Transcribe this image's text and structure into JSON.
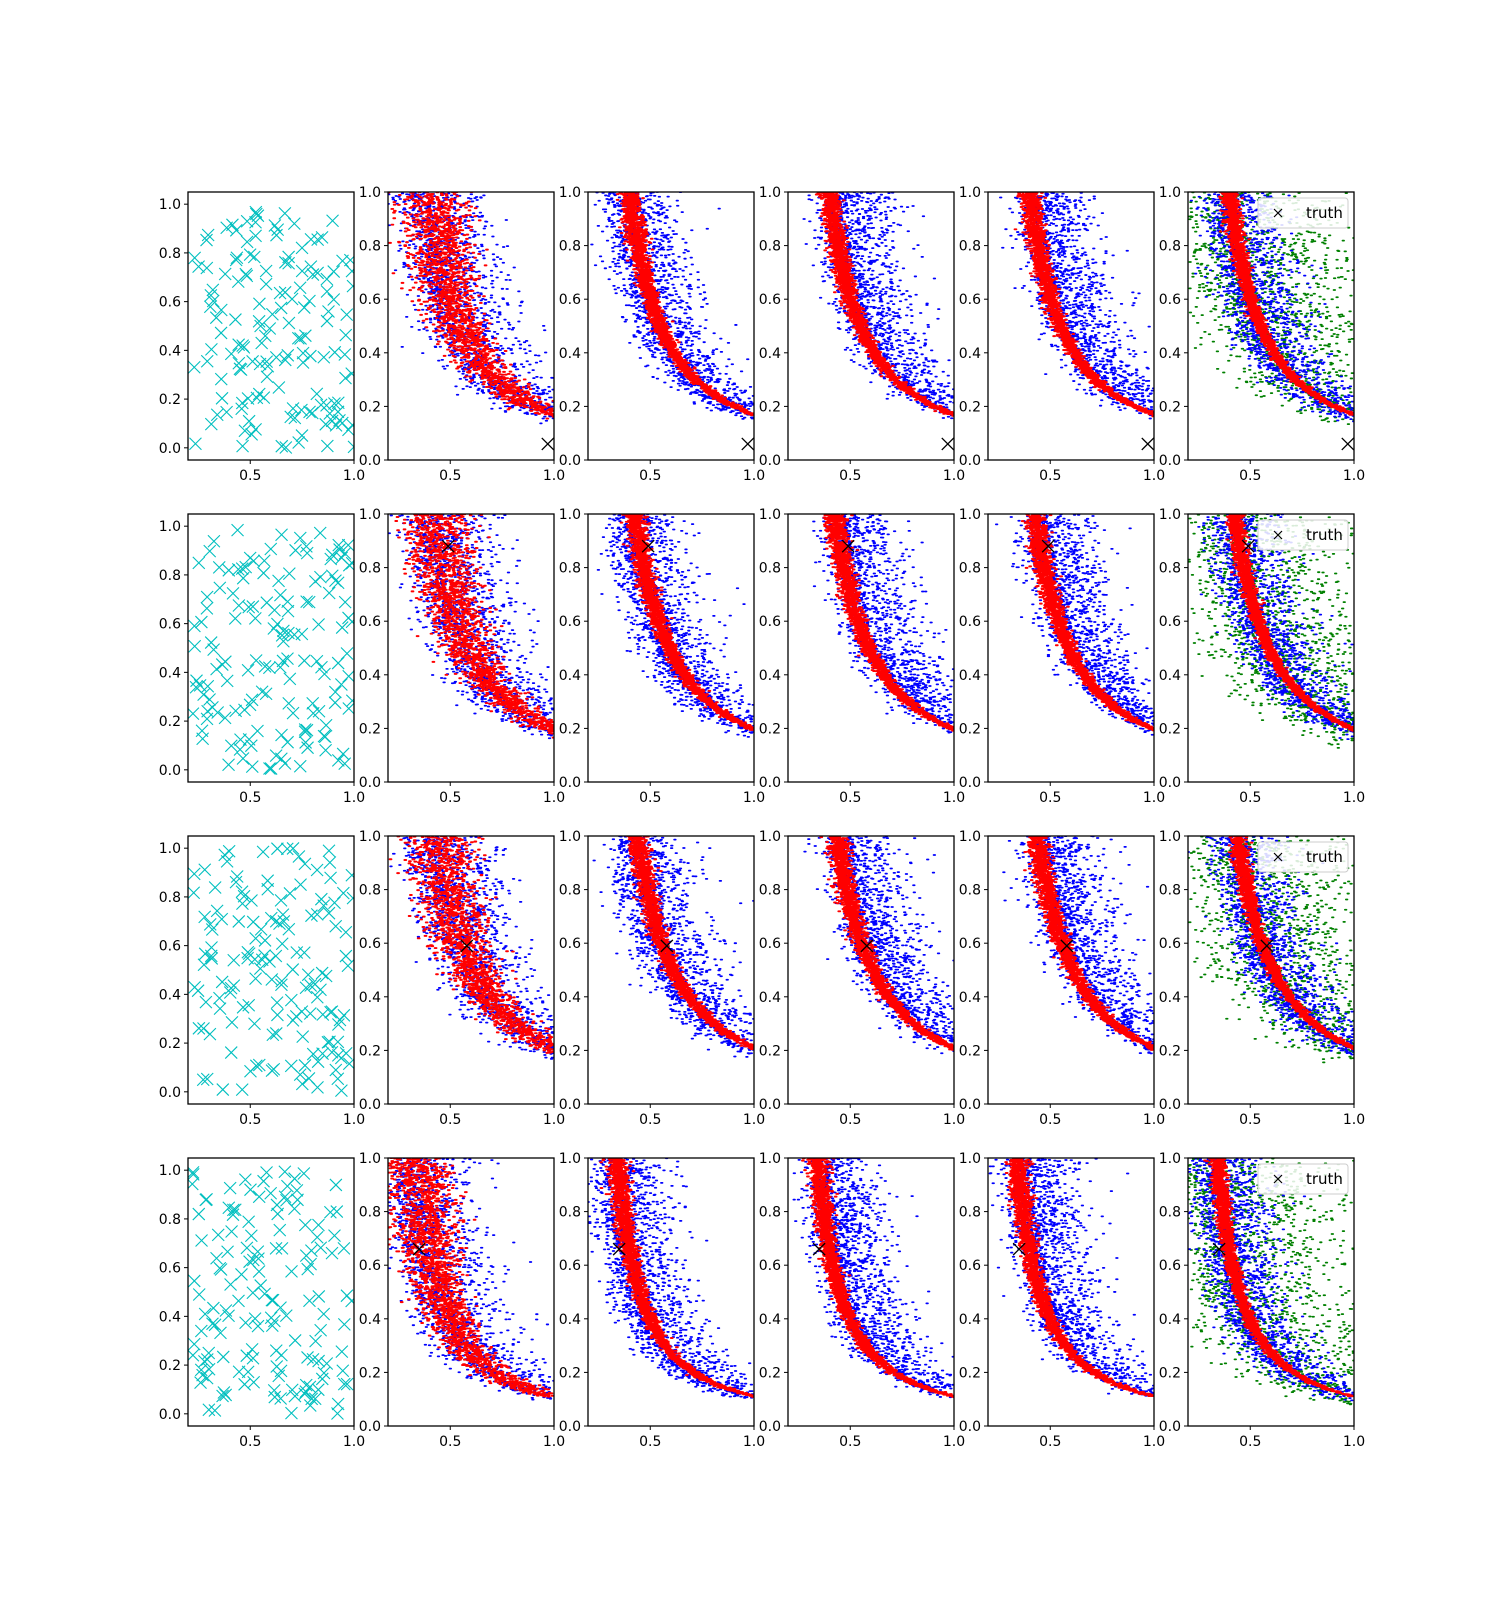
{
  "figure": {
    "rows": 4,
    "cols": 6
  },
  "chart_data": {
    "type": "scatter",
    "grid": false,
    "legend": {
      "label": "truth",
      "marker": "x",
      "color": "#000000",
      "placement": "upper-right",
      "panel": "last-column"
    },
    "colors": {
      "samples": "#00bfbf",
      "blue": "#0000ff",
      "red": "#ff0000",
      "green": "#008000",
      "truth": "#000000"
    },
    "first_column": {
      "xlim": [
        0.2,
        1.0
      ],
      "ylim": [
        -0.05,
        1.05
      ],
      "xticks": [
        "0.5",
        "1.0"
      ],
      "yticks": [
        "0.0",
        "0.2",
        "0.4",
        "0.6",
        "0.8",
        "1.0"
      ]
    },
    "other_columns": {
      "xlim": [
        0.2,
        1.0
      ],
      "ylim": [
        0.0,
        1.0
      ],
      "xticks": [
        "0.5",
        "1.0"
      ],
      "yticks": [
        "0.0",
        "0.2",
        "0.4",
        "0.6",
        "0.8",
        "1.0"
      ]
    },
    "rows": [
      {
        "truth": [
          0.97,
          0.06
        ],
        "curve_k": 0.13,
        "legend_shown": true
      },
      {
        "truth": [
          0.49,
          0.88
        ],
        "curve_k": 0.15,
        "legend_shown": true
      },
      {
        "truth": [
          0.58,
          0.59
        ],
        "curve_k": 0.16,
        "legend_shown": true
      },
      {
        "truth": [
          0.35,
          0.66
        ],
        "curve_k": 0.085,
        "legend_shown": true
      }
    ],
    "columns": [
      {
        "series": [
          "samples"
        ]
      },
      {
        "series": [
          "blue",
          "red"
        ]
      },
      {
        "series": [
          "blue",
          "red"
        ]
      },
      {
        "series": [
          "blue",
          "red"
        ]
      },
      {
        "series": [
          "blue",
          "red"
        ]
      },
      {
        "series": [
          "green",
          "blue",
          "red"
        ]
      }
    ]
  }
}
